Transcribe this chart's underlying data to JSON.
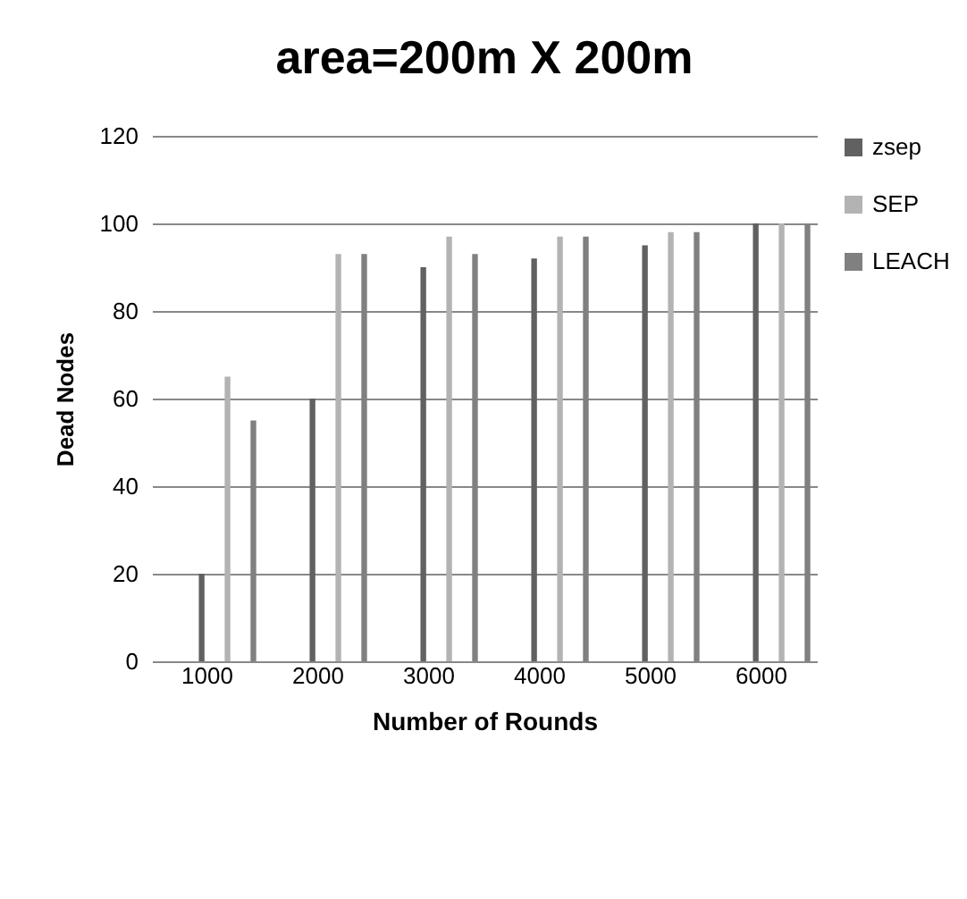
{
  "chart_data": {
    "type": "bar",
    "title": "area=200m X 200m",
    "xlabel": "Number of Rounds",
    "ylabel": "Dead Nodes",
    "categories": [
      "1000",
      "2000",
      "3000",
      "4000",
      "5000",
      "6000"
    ],
    "series": [
      {
        "name": "zsep",
        "color": "#616161",
        "values": [
          20,
          60,
          90,
          92,
          95,
          100
        ]
      },
      {
        "name": "SEP",
        "color": "#b3b3b3",
        "values": [
          65,
          93,
          97,
          97,
          98,
          100
        ]
      },
      {
        "name": "LEACH",
        "color": "#808080",
        "values": [
          55,
          93,
          93,
          97,
          98,
          100
        ]
      }
    ],
    "ylim": [
      0,
      120
    ],
    "yticks": [
      0,
      20,
      40,
      60,
      80,
      100,
      120
    ],
    "grid": "y",
    "legend": "right"
  }
}
